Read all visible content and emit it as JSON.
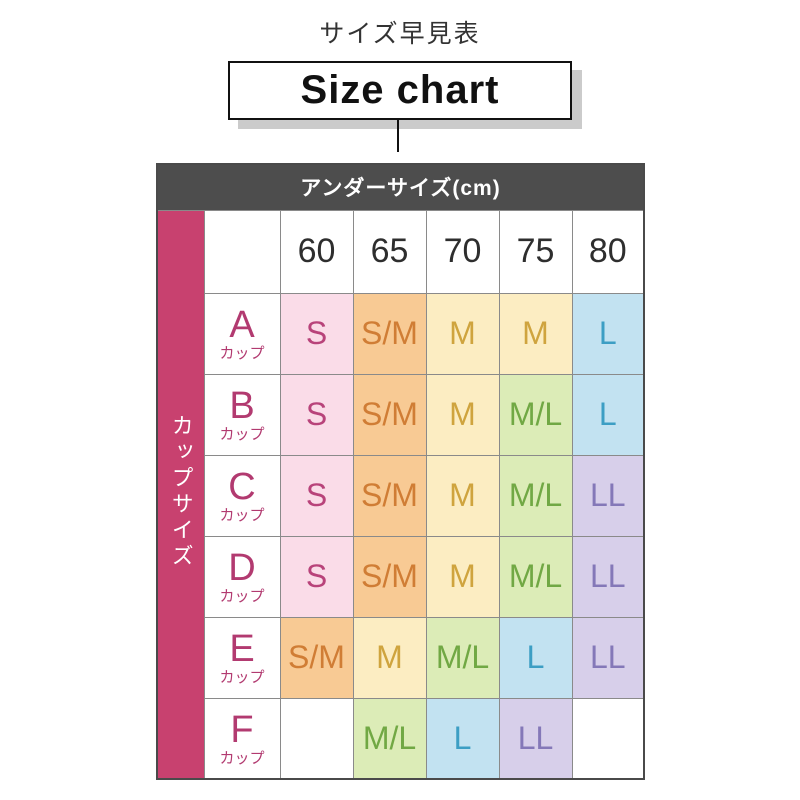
{
  "page": {
    "background": "#ffffff",
    "title_jp": "サイズ早見表",
    "title_en": "Size chart"
  },
  "chart_data": {
    "type": "table",
    "title": "サイズ早見表",
    "subtitle": "Size chart",
    "column_axis_label": "アンダーサイズ(cm)",
    "row_axis_label": "カップサイズ",
    "cup_suffix": "カップ",
    "columns": [
      "60",
      "65",
      "70",
      "75",
      "80"
    ],
    "rows": [
      {
        "cup": "A",
        "cells": [
          {
            "label": "S",
            "tone": "pink"
          },
          {
            "label": "S/M",
            "tone": "orange"
          },
          {
            "label": "M",
            "tone": "yellow"
          },
          {
            "label": "M",
            "tone": "yellow"
          },
          {
            "label": "L",
            "tone": "blue"
          }
        ]
      },
      {
        "cup": "B",
        "cells": [
          {
            "label": "S",
            "tone": "pink"
          },
          {
            "label": "S/M",
            "tone": "orange"
          },
          {
            "label": "M",
            "tone": "yellow"
          },
          {
            "label": "M/L",
            "tone": "green"
          },
          {
            "label": "L",
            "tone": "blue"
          }
        ]
      },
      {
        "cup": "C",
        "cells": [
          {
            "label": "S",
            "tone": "pink"
          },
          {
            "label": "S/M",
            "tone": "orange"
          },
          {
            "label": "M",
            "tone": "yellow"
          },
          {
            "label": "M/L",
            "tone": "green"
          },
          {
            "label": "LL",
            "tone": "purple"
          }
        ]
      },
      {
        "cup": "D",
        "cells": [
          {
            "label": "S",
            "tone": "pink"
          },
          {
            "label": "S/M",
            "tone": "orange"
          },
          {
            "label": "M",
            "tone": "yellow"
          },
          {
            "label": "M/L",
            "tone": "green"
          },
          {
            "label": "LL",
            "tone": "purple"
          }
        ]
      },
      {
        "cup": "E",
        "cells": [
          {
            "label": "S/M",
            "tone": "orange"
          },
          {
            "label": "M",
            "tone": "yellow"
          },
          {
            "label": "M/L",
            "tone": "green"
          },
          {
            "label": "L",
            "tone": "blue"
          },
          {
            "label": "LL",
            "tone": "purple"
          }
        ]
      },
      {
        "cup": "F",
        "cells": [
          {
            "label": "",
            "tone": "empty"
          },
          {
            "label": "M/L",
            "tone": "green"
          },
          {
            "label": "L",
            "tone": "blue"
          },
          {
            "label": "LL",
            "tone": "purple"
          },
          {
            "label": "",
            "tone": "empty"
          }
        ]
      }
    ],
    "palette": {
      "pink": {
        "bg": "#fadce8",
        "text": "#b8437a"
      },
      "orange": {
        "bg": "#f8ca94",
        "text": "#d07d35"
      },
      "yellow": {
        "bg": "#fcedc2",
        "text": "#cfa43e"
      },
      "green": {
        "bg": "#dcecb7",
        "text": "#71a844"
      },
      "blue": {
        "bg": "#c2e2f1",
        "text": "#3c9ec4"
      },
      "purple": {
        "bg": "#d7cfea",
        "text": "#8478b8"
      },
      "empty": {
        "bg": "#ffffff",
        "text": "#333333"
      }
    },
    "header_bg": "#4d4d4d",
    "header_text_color": "#ffffff",
    "strip_bg": "#c8416f",
    "strip_text_color": "#ffffff",
    "cup_text_color": "#b23a70"
  }
}
